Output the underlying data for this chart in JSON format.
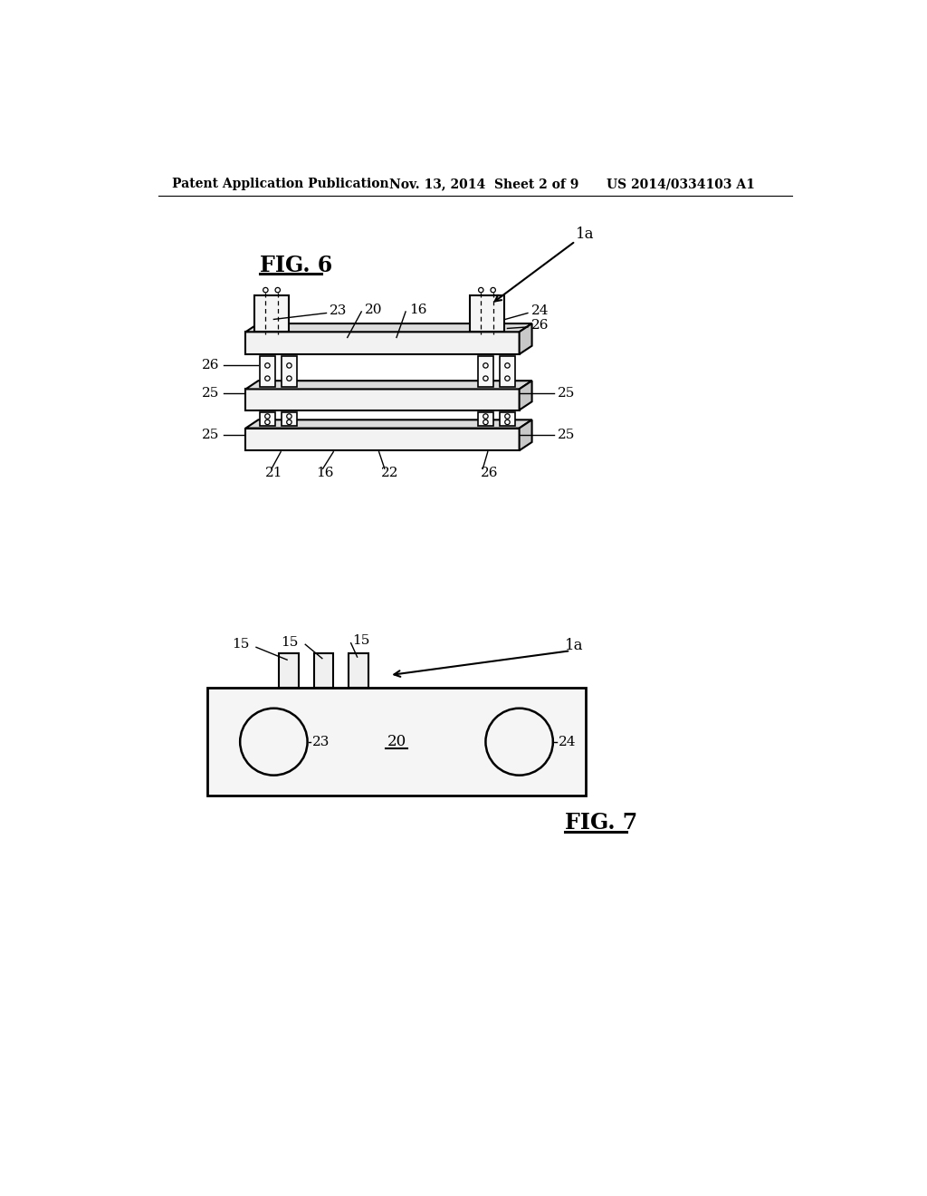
{
  "bg_color": "#ffffff",
  "header_left": "Patent Application Publication",
  "header_mid": "Nov. 13, 2014  Sheet 2 of 9",
  "header_right": "US 2014/0334103 A1",
  "line_color": "#000000",
  "fig6_title": "FIG. 6",
  "fig7_title": "FIG. 7",
  "fig6_1a": "1a",
  "fig7_1a": "1a",
  "label_fs": 11,
  "header_fs": 10,
  "title_fs": 17
}
